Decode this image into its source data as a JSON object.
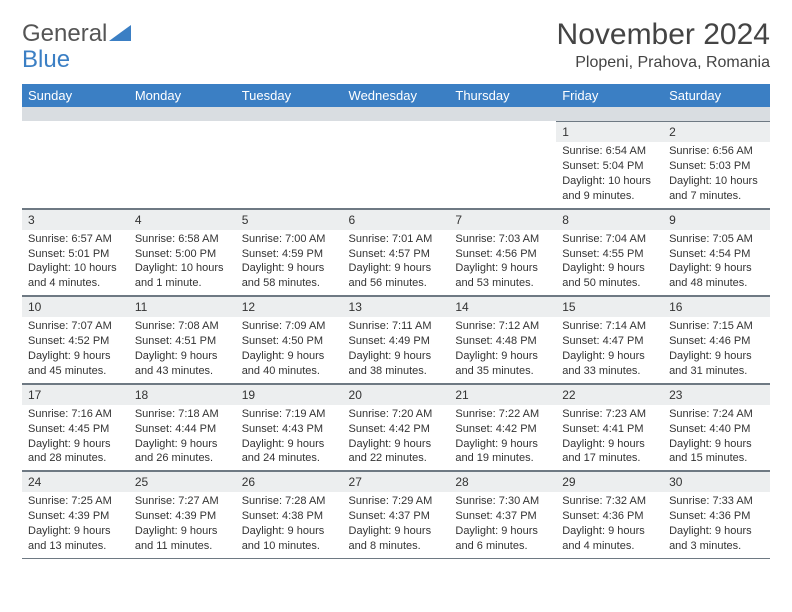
{
  "logo": {
    "word1": "General",
    "word2": "Blue"
  },
  "title": "November 2024",
  "location": "Plopeni, Prahova, Romania",
  "dayHeaders": [
    "Sunday",
    "Monday",
    "Tuesday",
    "Wednesday",
    "Thursday",
    "Friday",
    "Saturday"
  ],
  "colors": {
    "header_bg": "#3b7fc4",
    "header_text": "#ffffff",
    "daynum_bg": "#eceeef",
    "border": "#6e7983",
    "spacer_bg": "#d9dde1"
  },
  "weeks": [
    [
      null,
      null,
      null,
      null,
      null,
      {
        "n": "1",
        "sr": "Sunrise: 6:54 AM",
        "ss": "Sunset: 5:04 PM",
        "dl": "Daylight: 10 hours and 9 minutes."
      },
      {
        "n": "2",
        "sr": "Sunrise: 6:56 AM",
        "ss": "Sunset: 5:03 PM",
        "dl": "Daylight: 10 hours and 7 minutes."
      }
    ],
    [
      {
        "n": "3",
        "sr": "Sunrise: 6:57 AM",
        "ss": "Sunset: 5:01 PM",
        "dl": "Daylight: 10 hours and 4 minutes."
      },
      {
        "n": "4",
        "sr": "Sunrise: 6:58 AM",
        "ss": "Sunset: 5:00 PM",
        "dl": "Daylight: 10 hours and 1 minute."
      },
      {
        "n": "5",
        "sr": "Sunrise: 7:00 AM",
        "ss": "Sunset: 4:59 PM",
        "dl": "Daylight: 9 hours and 58 minutes."
      },
      {
        "n": "6",
        "sr": "Sunrise: 7:01 AM",
        "ss": "Sunset: 4:57 PM",
        "dl": "Daylight: 9 hours and 56 minutes."
      },
      {
        "n": "7",
        "sr": "Sunrise: 7:03 AM",
        "ss": "Sunset: 4:56 PM",
        "dl": "Daylight: 9 hours and 53 minutes."
      },
      {
        "n": "8",
        "sr": "Sunrise: 7:04 AM",
        "ss": "Sunset: 4:55 PM",
        "dl": "Daylight: 9 hours and 50 minutes."
      },
      {
        "n": "9",
        "sr": "Sunrise: 7:05 AM",
        "ss": "Sunset: 4:54 PM",
        "dl": "Daylight: 9 hours and 48 minutes."
      }
    ],
    [
      {
        "n": "10",
        "sr": "Sunrise: 7:07 AM",
        "ss": "Sunset: 4:52 PM",
        "dl": "Daylight: 9 hours and 45 minutes."
      },
      {
        "n": "11",
        "sr": "Sunrise: 7:08 AM",
        "ss": "Sunset: 4:51 PM",
        "dl": "Daylight: 9 hours and 43 minutes."
      },
      {
        "n": "12",
        "sr": "Sunrise: 7:09 AM",
        "ss": "Sunset: 4:50 PM",
        "dl": "Daylight: 9 hours and 40 minutes."
      },
      {
        "n": "13",
        "sr": "Sunrise: 7:11 AM",
        "ss": "Sunset: 4:49 PM",
        "dl": "Daylight: 9 hours and 38 minutes."
      },
      {
        "n": "14",
        "sr": "Sunrise: 7:12 AM",
        "ss": "Sunset: 4:48 PM",
        "dl": "Daylight: 9 hours and 35 minutes."
      },
      {
        "n": "15",
        "sr": "Sunrise: 7:14 AM",
        "ss": "Sunset: 4:47 PM",
        "dl": "Daylight: 9 hours and 33 minutes."
      },
      {
        "n": "16",
        "sr": "Sunrise: 7:15 AM",
        "ss": "Sunset: 4:46 PM",
        "dl": "Daylight: 9 hours and 31 minutes."
      }
    ],
    [
      {
        "n": "17",
        "sr": "Sunrise: 7:16 AM",
        "ss": "Sunset: 4:45 PM",
        "dl": "Daylight: 9 hours and 28 minutes."
      },
      {
        "n": "18",
        "sr": "Sunrise: 7:18 AM",
        "ss": "Sunset: 4:44 PM",
        "dl": "Daylight: 9 hours and 26 minutes."
      },
      {
        "n": "19",
        "sr": "Sunrise: 7:19 AM",
        "ss": "Sunset: 4:43 PM",
        "dl": "Daylight: 9 hours and 24 minutes."
      },
      {
        "n": "20",
        "sr": "Sunrise: 7:20 AM",
        "ss": "Sunset: 4:42 PM",
        "dl": "Daylight: 9 hours and 22 minutes."
      },
      {
        "n": "21",
        "sr": "Sunrise: 7:22 AM",
        "ss": "Sunset: 4:42 PM",
        "dl": "Daylight: 9 hours and 19 minutes."
      },
      {
        "n": "22",
        "sr": "Sunrise: 7:23 AM",
        "ss": "Sunset: 4:41 PM",
        "dl": "Daylight: 9 hours and 17 minutes."
      },
      {
        "n": "23",
        "sr": "Sunrise: 7:24 AM",
        "ss": "Sunset: 4:40 PM",
        "dl": "Daylight: 9 hours and 15 minutes."
      }
    ],
    [
      {
        "n": "24",
        "sr": "Sunrise: 7:25 AM",
        "ss": "Sunset: 4:39 PM",
        "dl": "Daylight: 9 hours and 13 minutes."
      },
      {
        "n": "25",
        "sr": "Sunrise: 7:27 AM",
        "ss": "Sunset: 4:39 PM",
        "dl": "Daylight: 9 hours and 11 minutes."
      },
      {
        "n": "26",
        "sr": "Sunrise: 7:28 AM",
        "ss": "Sunset: 4:38 PM",
        "dl": "Daylight: 9 hours and 10 minutes."
      },
      {
        "n": "27",
        "sr": "Sunrise: 7:29 AM",
        "ss": "Sunset: 4:37 PM",
        "dl": "Daylight: 9 hours and 8 minutes."
      },
      {
        "n": "28",
        "sr": "Sunrise: 7:30 AM",
        "ss": "Sunset: 4:37 PM",
        "dl": "Daylight: 9 hours and 6 minutes."
      },
      {
        "n": "29",
        "sr": "Sunrise: 7:32 AM",
        "ss": "Sunset: 4:36 PM",
        "dl": "Daylight: 9 hours and 4 minutes."
      },
      {
        "n": "30",
        "sr": "Sunrise: 7:33 AM",
        "ss": "Sunset: 4:36 PM",
        "dl": "Daylight: 9 hours and 3 minutes."
      }
    ]
  ]
}
